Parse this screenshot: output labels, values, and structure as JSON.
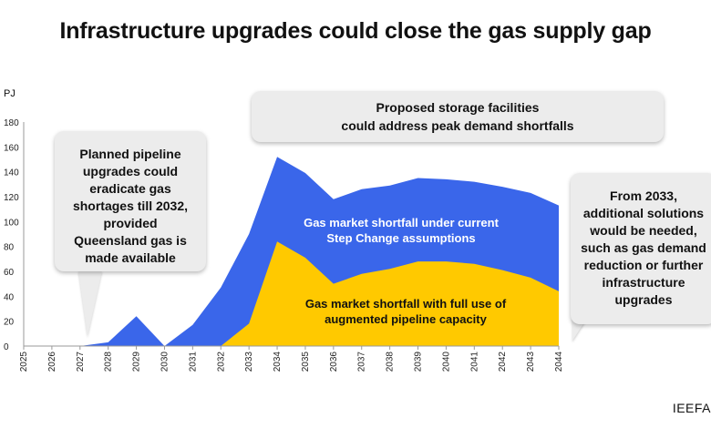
{
  "page": {
    "title": "Infrastructure upgrades could close the gas supply gap",
    "source": "IEEFA"
  },
  "callouts": {
    "left": [
      "Planned pipeline",
      "upgrades could",
      "eradicate gas",
      "shortages till 2032,",
      "provided",
      "Queensland gas is",
      "made available"
    ],
    "top": [
      "Proposed storage facilities",
      "could address peak demand shortfalls"
    ],
    "right": [
      "From 2033,",
      "additional solutions",
      "would be needed,",
      "such as gas demand",
      "reduction or further",
      "infrastructure",
      "upgrades"
    ]
  },
  "colors": {
    "current_step_change": "#3a66ea",
    "augmented_pipeline": "#ffc900",
    "axis": "#9a9a9a"
  },
  "chart_data": {
    "type": "area",
    "ylabel": "PJ",
    "ylim": [
      0,
      180
    ],
    "yticks": [
      0,
      20,
      40,
      60,
      80,
      100,
      120,
      140,
      160,
      180
    ],
    "x": [
      "2025",
      "2026",
      "2027",
      "2028",
      "2029",
      "2030",
      "2031",
      "2032",
      "2033",
      "2034",
      "2035",
      "2036",
      "2037",
      "2038",
      "2039",
      "2040",
      "2041",
      "2042",
      "2043",
      "2044"
    ],
    "series": [
      {
        "name": "Gas market shortfall under current Step Change assumptions",
        "color": "#3a66ea",
        "values": [
          0,
          0,
          0,
          3,
          24,
          0,
          17,
          47,
          90,
          152,
          139,
          118,
          126,
          129,
          135,
          134,
          132,
          128,
          123,
          113
        ]
      },
      {
        "name": "Gas market shortfall with full use of augmented pipeline capacity",
        "color": "#ffc900",
        "values": [
          0,
          0,
          0,
          0,
          0,
          0,
          0,
          0,
          18,
          84,
          71,
          50,
          58,
          62,
          68,
          68,
          66,
          61,
          55,
          44
        ]
      }
    ],
    "series_labels": {
      "blue": [
        "Gas market shortfall under current",
        "Step Change assumptions"
      ],
      "yellow": [
        "Gas market shortfall with full use of",
        "augmented pipeline capacity"
      ]
    },
    "grid": false,
    "legend": "inline"
  }
}
